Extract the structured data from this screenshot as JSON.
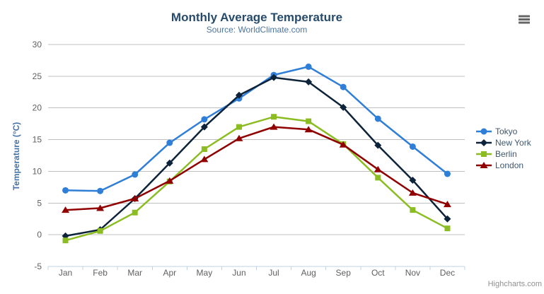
{
  "chart": {
    "title": "Monthly Average Temperature",
    "subtitle": "Source: WorldClimate.com",
    "y_axis_title": "Temperature (°C)",
    "credits": "Highcharts.com",
    "menu_icon": "hamburger-icon",
    "style": {
      "title_color": "#274b6d",
      "subtitle_color": "#4d759e",
      "axis_label_color": "#606060",
      "y_axis_title_color": "#4572a7",
      "legend_text_color": "#3e576f",
      "grid_line_color": "#c0c0c0",
      "axis_line_color": "#c0d0e0",
      "menu_icon_color": "#666666",
      "credits_color": "#909090",
      "background": "#ffffff"
    }
  },
  "chart_data": {
    "type": "line",
    "title": "Monthly Average Temperature",
    "subtitle": "Source: WorldClimate.com",
    "categories": [
      "Jan",
      "Feb",
      "Mar",
      "Apr",
      "May",
      "Jun",
      "Jul",
      "Aug",
      "Sep",
      "Oct",
      "Nov",
      "Dec"
    ],
    "series": [
      {
        "name": "Tokyo",
        "color": "#2f7ed8",
        "marker": "circle",
        "values": [
          7.0,
          6.9,
          9.5,
          14.5,
          18.2,
          21.5,
          25.2,
          26.5,
          23.3,
          18.3,
          13.9,
          9.6
        ]
      },
      {
        "name": "New York",
        "color": "#0d233a",
        "marker": "diamond",
        "values": [
          -0.2,
          0.8,
          5.7,
          11.3,
          17.0,
          22.0,
          24.8,
          24.1,
          20.1,
          14.1,
          8.6,
          2.5
        ]
      },
      {
        "name": "Berlin",
        "color": "#8bbc21",
        "marker": "square",
        "values": [
          -0.9,
          0.6,
          3.5,
          8.4,
          13.5,
          17.0,
          18.6,
          17.9,
          14.3,
          9.0,
          3.9,
          1.0
        ]
      },
      {
        "name": "London",
        "color": "#910000",
        "marker": "triangle",
        "values": [
          3.9,
          4.2,
          5.7,
          8.5,
          11.9,
          15.2,
          17.0,
          16.6,
          14.2,
          10.3,
          6.6,
          4.8
        ]
      }
    ],
    "xlabel": "",
    "ylabel": "Temperature (°C)",
    "ylim": [
      -5,
      30
    ],
    "yticks": [
      -5,
      0,
      5,
      10,
      15,
      20,
      25,
      30
    ],
    "grid": true,
    "legend_position": "right-middle"
  }
}
